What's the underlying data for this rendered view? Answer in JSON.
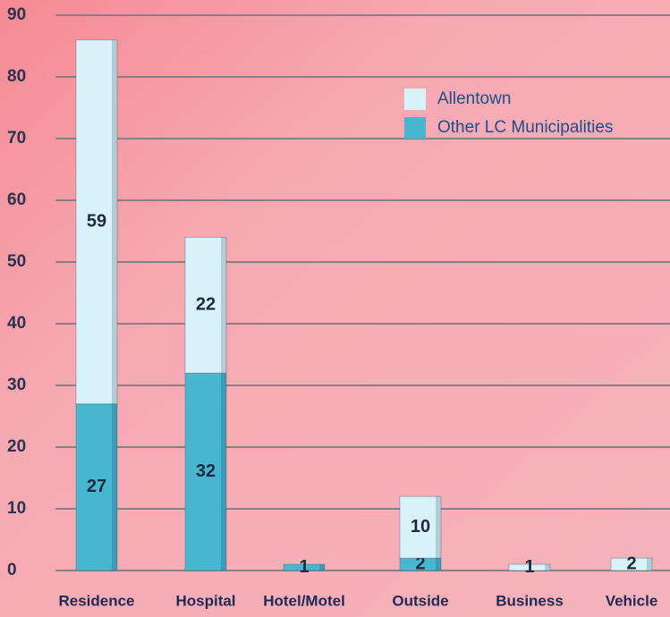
{
  "chart_data": {
    "type": "stacked-bar",
    "categories": [
      "Residence",
      "Hospital",
      "Hotel/Motel",
      "Outside",
      "Business",
      "Vehicle"
    ],
    "series": [
      {
        "name": "Other LC Municipalities",
        "color": "#49b6cf",
        "values": [
          27,
          32,
          1,
          2,
          null,
          null
        ]
      },
      {
        "name": "Allentown",
        "color": "#d9f1f8",
        "values": [
          59,
          22,
          null,
          10,
          1,
          2
        ]
      }
    ],
    "legend_order": [
      1,
      0
    ],
    "ylim": [
      0,
      90
    ],
    "yticks": [
      0,
      10,
      20,
      30,
      40,
      50,
      60,
      70,
      80,
      90
    ],
    "grid": true
  }
}
